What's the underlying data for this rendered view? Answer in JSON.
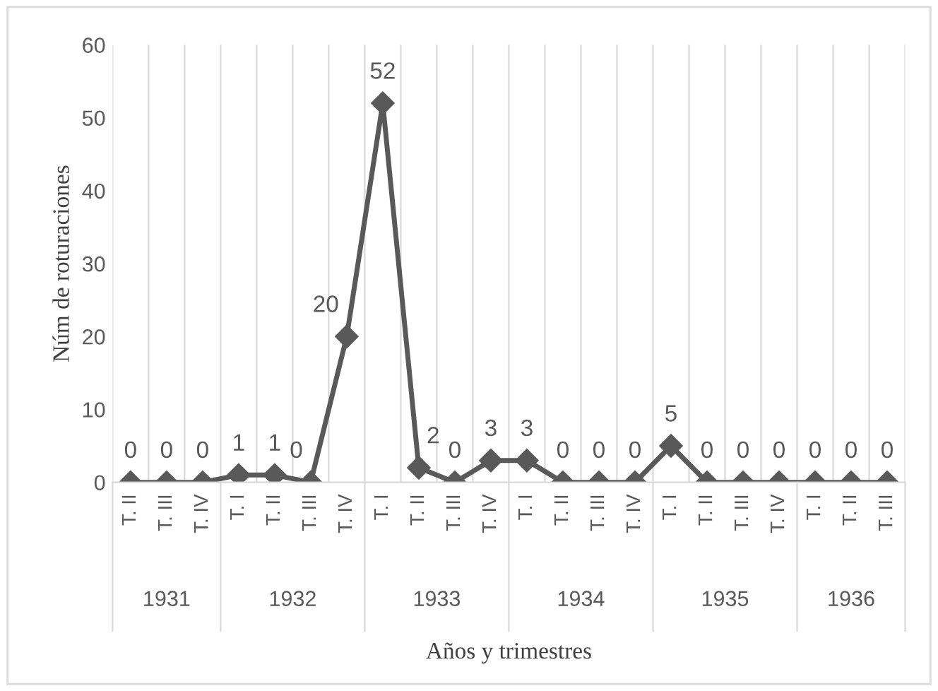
{
  "chart_data": {
    "type": "line",
    "xlabel": "Años y trimestres",
    "ylabel": "Núm de roturaciones",
    "categories": [
      "T. II",
      "T. III",
      "T. IV",
      "T. I",
      "T. II",
      "T. III",
      "T. IV",
      "T. I",
      "T. II",
      "T. III",
      "T. IV",
      "T. I",
      "T. II",
      "T. III",
      "T. IV",
      "T. I",
      "T. II",
      "T. III",
      "T. IV",
      "T. I",
      "T. II",
      "T. III"
    ],
    "series": [
      {
        "color": "#595959",
        "values": [
          0,
          0,
          0,
          1,
          1,
          0,
          20,
          52,
          2,
          0,
          3,
          3,
          0,
          0,
          0,
          5,
          0,
          0,
          0,
          0,
          0,
          0
        ]
      }
    ],
    "ylim": [
      0,
      60
    ],
    "yticks": [
      0,
      10,
      20,
      30,
      40,
      50,
      60
    ],
    "grid": "x",
    "marker": "diamond",
    "line_style": "solid",
    "data_labels": true,
    "annotations": [
      "1931",
      "1932",
      "1933",
      "1934",
      "1935",
      "1936"
    ]
  }
}
